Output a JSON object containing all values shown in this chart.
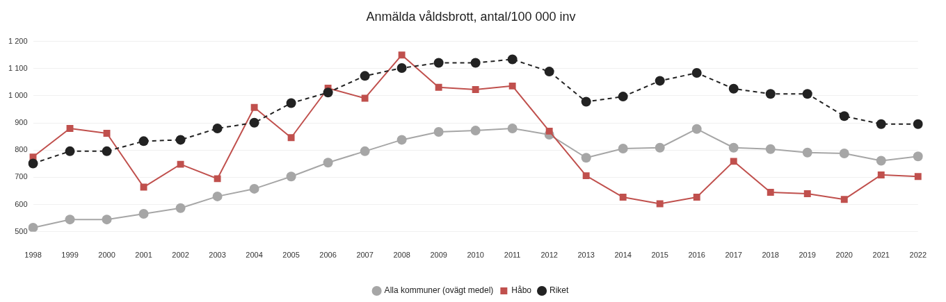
{
  "chart_data": {
    "type": "line",
    "title": "Anmälda våldsbrott, antal/100 000 inv",
    "categories": [
      "1998",
      "1999",
      "2000",
      "2001",
      "2002",
      "2003",
      "2004",
      "2005",
      "2006",
      "2007",
      "2008",
      "2009",
      "2010",
      "2011",
      "2012",
      "2013",
      "2014",
      "2015",
      "2016",
      "2017",
      "2018",
      "2019",
      "2020",
      "2021",
      "2022"
    ],
    "series": [
      {
        "name": "Alla kommuner (ovägt medel)",
        "color": "#a6a6a6",
        "marker": "circle",
        "line_style": "solid",
        "values": [
          515,
          545,
          545,
          566,
          587,
          630,
          658,
          703,
          754,
          796,
          838,
          867,
          872,
          880,
          857,
          772,
          806,
          809,
          878,
          809,
          804,
          791,
          788,
          761,
          777
        ]
      },
      {
        "name": "Håbo",
        "color": "#c0504d",
        "marker": "square",
        "line_style": "solid",
        "values": [
          775,
          880,
          862,
          664,
          748,
          695,
          957,
          846,
          1028,
          991,
          1150,
          1031,
          1023,
          1036,
          870,
          706,
          627,
          603,
          627,
          759,
          645,
          640,
          619,
          709,
          703
        ]
      },
      {
        "name": "Riket",
        "color": "#222222",
        "marker": "circle",
        "line_style": "dashed",
        "values": [
          751,
          796,
          796,
          833,
          838,
          880,
          901,
          973,
          1012,
          1073,
          1102,
          1121,
          1121,
          1134,
          1089,
          978,
          997,
          1055,
          1084,
          1026,
          1007,
          1007,
          925,
          896,
          896
        ]
      }
    ],
    "ylim": [
      500,
      1200
    ],
    "yticks": [
      500,
      600,
      700,
      800,
      900,
      {
        "value": 1000,
        "label": "1 000"
      },
      {
        "value": 1100,
        "label": "1 100"
      },
      {
        "value": 1200,
        "label": "1 200"
      }
    ],
    "grid": "y",
    "legend": "bottom"
  }
}
